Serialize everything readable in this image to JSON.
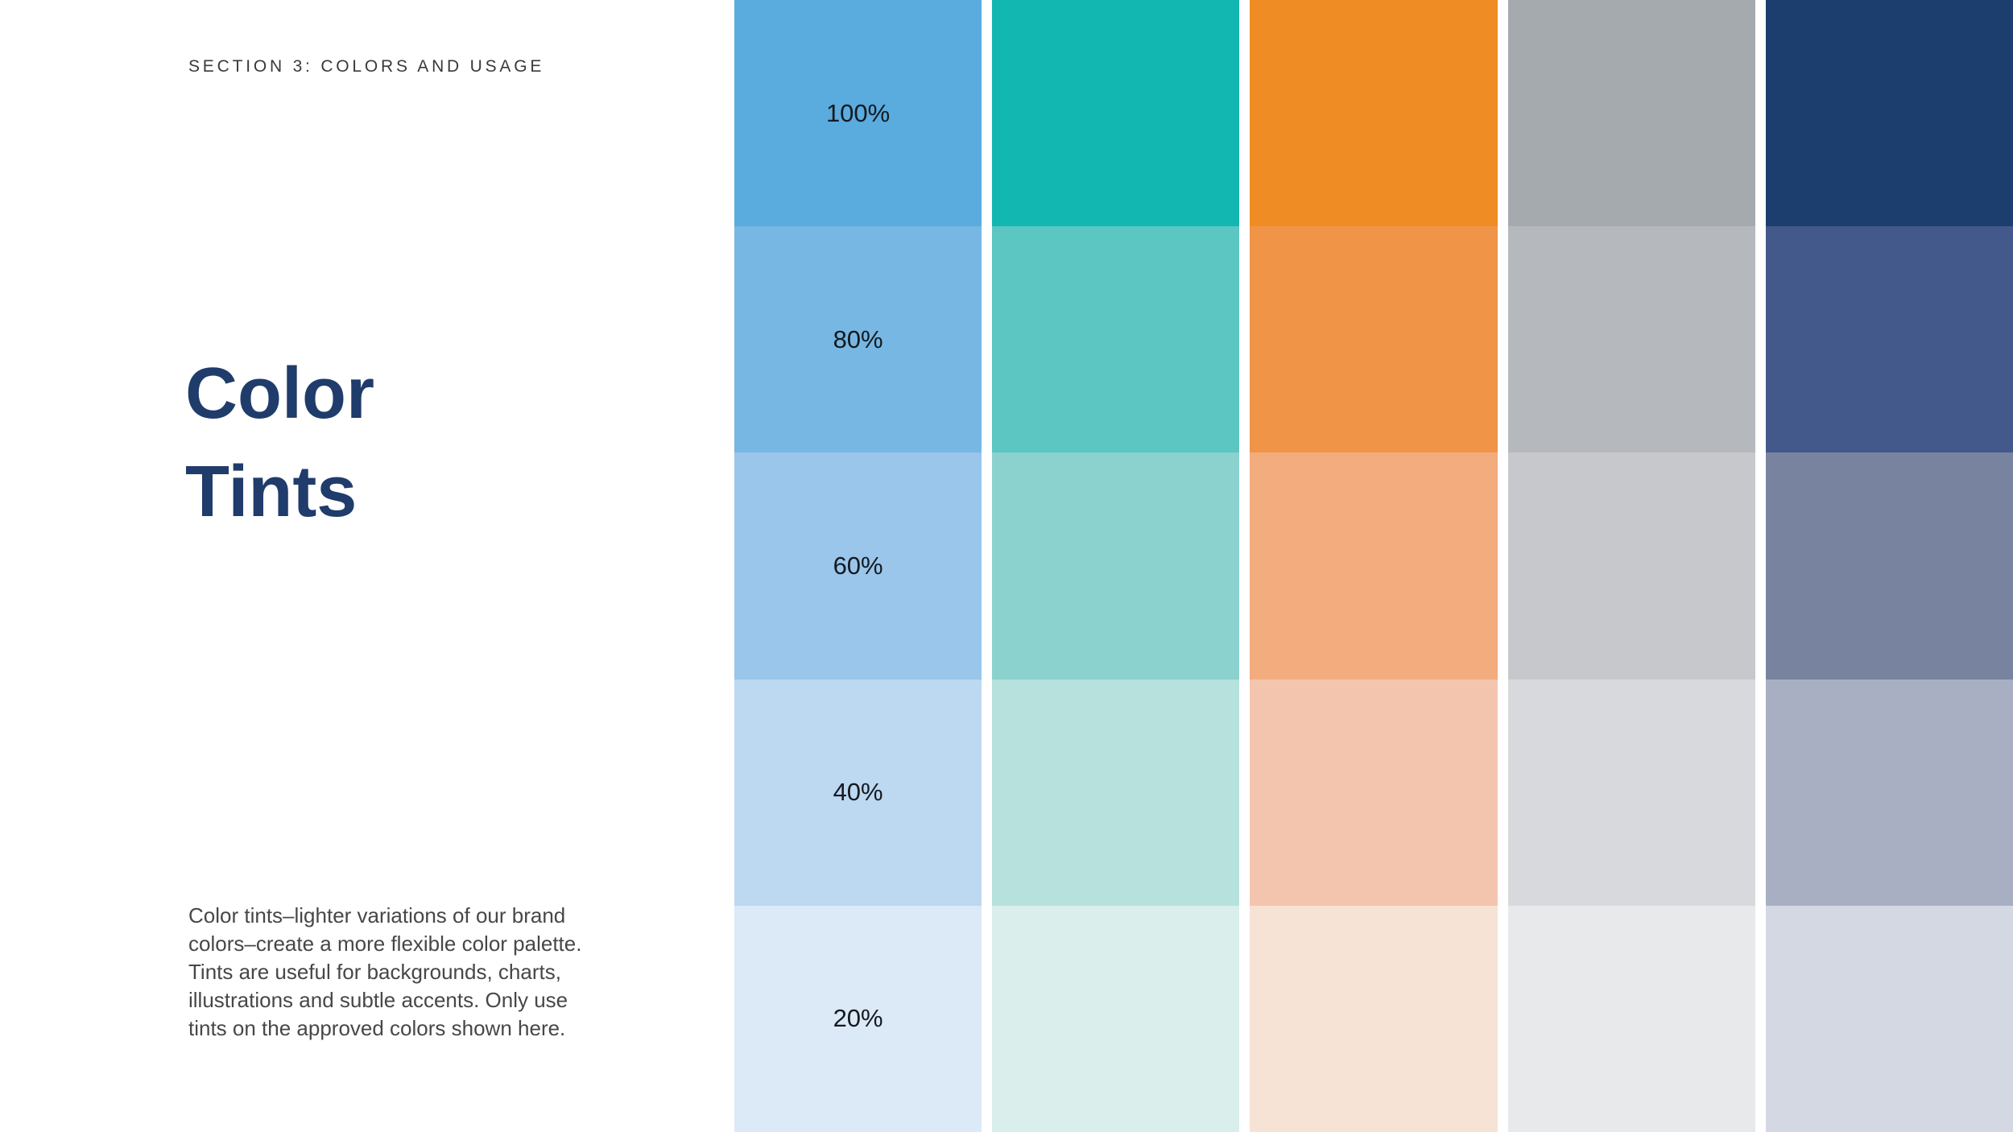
{
  "header": {
    "eyebrow": "SECTION 3: COLORS AND USAGE"
  },
  "title": {
    "line1": "Color",
    "line2": "Tints"
  },
  "description": {
    "lines": [
      "Color tints–lighter variations of our brand",
      "colors–create a more flexible color palette.",
      "Tints are useful for backgrounds, charts,",
      "illustrations and subtle accents. Only use",
      "tints on the approved colors shown here."
    ]
  },
  "colors": {
    "background": "#FFFFFF",
    "title_text": "#1F3C6B",
    "eyebrow_text": "#3A3A3A",
    "body_text": "#474747",
    "tint_label_text": "#15191F"
  },
  "tint_levels": [
    "100%",
    "80%",
    "60%",
    "40%",
    "20%"
  ],
  "swatch_grid": {
    "columns": [
      {
        "name": "blue",
        "base": "#5AABDE",
        "tints": [
          "#5AABDE",
          "#77B7E3",
          "#99C6EA",
          "#BDD8F1",
          "#DCE9F7"
        ]
      },
      {
        "name": "teal",
        "base": "#12B7B2",
        "tints": [
          "#12B7B2",
          "#5BC6C2",
          "#8BD1CD",
          "#B7E1DD",
          "#DAEEEB"
        ]
      },
      {
        "name": "orange",
        "base": "#EF8C23",
        "tints": [
          "#EF8C23",
          "#F09448",
          "#F2AC7E",
          "#F4C5AE",
          "#F7E2D6"
        ]
      },
      {
        "name": "gray",
        "base": "#A5AAAF",
        "tints": [
          "#A5AAAF",
          "#B5B9BD",
          "#C6C8CC",
          "#D7D9DC",
          "#E8E9EA"
        ]
      },
      {
        "name": "navy",
        "base": "#1C3E6E",
        "tints": [
          "#1C3E6E",
          "#43588B",
          "#78849F",
          "#A9AFC2",
          "#D4D8E3"
        ]
      }
    ]
  }
}
